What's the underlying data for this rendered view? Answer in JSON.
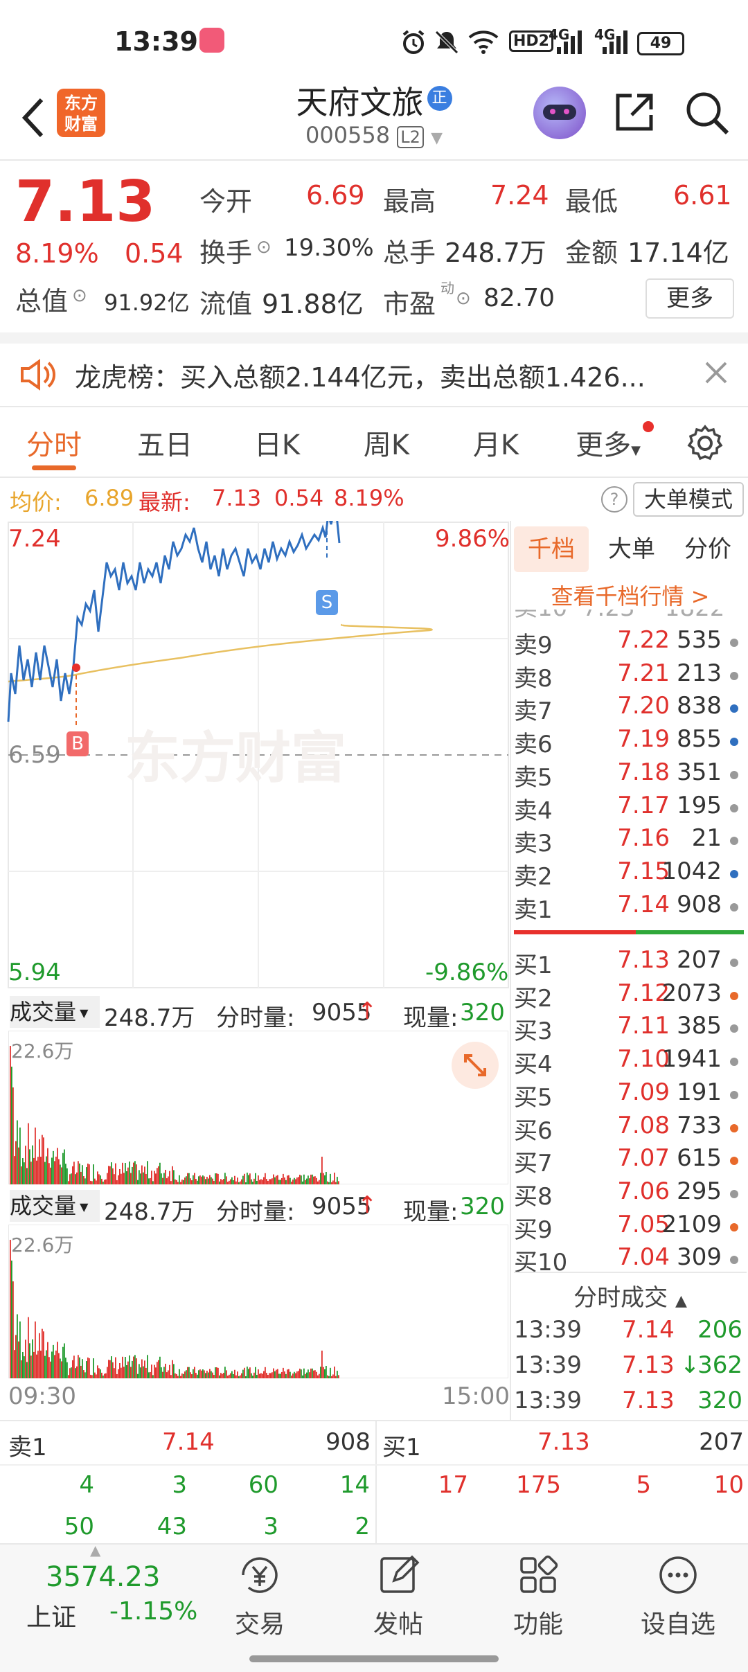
{
  "status_bar": {
    "time": "13:39",
    "battery": "49",
    "network1": "4G",
    "network2": "4G",
    "hd": "HD2"
  },
  "header": {
    "title": "天府文旅",
    "badge": "正",
    "code": "000558",
    "level": "L2",
    "logo_line1": "东方",
    "logo_line2": "财富"
  },
  "quote": {
    "price": "7.13",
    "change_pct": "8.19%",
    "change": "0.54",
    "open_label": "今开",
    "open": "6.69",
    "high_label": "最高",
    "high": "7.24",
    "low_label": "最低",
    "low": "6.61",
    "turnover_label": "换手",
    "turnover": "19.30%",
    "volume_label": "总手",
    "volume": "248.7万",
    "amount_label": "金额",
    "amount": "17.14亿",
    "mktcap_label": "总值",
    "mktcap": "91.92亿",
    "float_label": "流值",
    "float": "91.88亿",
    "pe_label": "市盈",
    "pe_sup": "动",
    "pe": "82.70",
    "more_label": "更多"
  },
  "notice": {
    "text": "龙虎榜：买入总额2.144亿元，卖出总额1.426..."
  },
  "tabs": [
    "分时",
    "五日",
    "日K",
    "周K",
    "月K",
    "更多"
  ],
  "chart_info": {
    "avg_label": "均价:",
    "avg": "6.89",
    "latest_label": "最新:",
    "latest": "7.13",
    "chg": "0.54",
    "pct": "8.19%",
    "big_order_label": "大单模式"
  },
  "chart_data": {
    "type": "line",
    "y_top": "7.24",
    "y_bottom": "5.94",
    "y_ref": "6.59",
    "pct_top": "9.86%",
    "pct_bottom": "-9.86%",
    "x_start": "09:30",
    "x_end": "15:00",
    "buy_marker": "B",
    "sell_marker": "S",
    "watermark": "东方财富"
  },
  "volume_panel": {
    "label": "成交量",
    "total": "248.7万",
    "minute_label": "分时量:",
    "minute": "9055",
    "current_label": "现量:",
    "current": "320",
    "max": "22.6万"
  },
  "orderbook_tabs": [
    "千档",
    "大单",
    "分价"
  ],
  "orderbook_link": "查看千档行情 >",
  "asks": [
    {
      "label": "卖9",
      "price": "7.22",
      "vol": "535",
      "dot": "#999999"
    },
    {
      "label": "卖8",
      "price": "7.21",
      "vol": "213",
      "dot": "#999999"
    },
    {
      "label": "卖7",
      "price": "7.20",
      "vol": "838",
      "dot": "#2f6fbf"
    },
    {
      "label": "卖6",
      "price": "7.19",
      "vol": "855",
      "dot": "#2f6fbf"
    },
    {
      "label": "卖5",
      "price": "7.18",
      "vol": "351",
      "dot": "#999999"
    },
    {
      "label": "卖4",
      "price": "7.17",
      "vol": "195",
      "dot": "#999999"
    },
    {
      "label": "卖3",
      "price": "7.16",
      "vol": "21",
      "dot": "#999999"
    },
    {
      "label": "卖2",
      "price": "7.15",
      "vol": "1042",
      "dot": "#2f6fbf"
    },
    {
      "label": "卖1",
      "price": "7.14",
      "vol": "908",
      "dot": "#999999"
    }
  ],
  "bids": [
    {
      "label": "买1",
      "price": "7.13",
      "vol": "207",
      "dot": "#999999"
    },
    {
      "label": "买2",
      "price": "7.12",
      "vol": "2073",
      "dot": "#e8692a"
    },
    {
      "label": "买3",
      "price": "7.11",
      "vol": "385",
      "dot": "#999999"
    },
    {
      "label": "买4",
      "price": "7.10",
      "vol": "1941",
      "dot": "#999999"
    },
    {
      "label": "买5",
      "price": "7.09",
      "vol": "191",
      "dot": "#999999"
    },
    {
      "label": "买6",
      "price": "7.08",
      "vol": "733",
      "dot": "#e8692a"
    },
    {
      "label": "买7",
      "price": "7.07",
      "vol": "615",
      "dot": "#e8692a"
    },
    {
      "label": "买8",
      "price": "7.06",
      "vol": "295",
      "dot": "#999999"
    },
    {
      "label": "买9",
      "price": "7.05",
      "vol": "2109",
      "dot": "#e8692a"
    },
    {
      "label": "买10",
      "price": "7.04",
      "vol": "309",
      "dot": "#999999"
    }
  ],
  "trades_title": "分时成交",
  "trades": [
    {
      "time": "13:39",
      "price": "7.14",
      "vol": "206",
      "arrow": ""
    },
    {
      "time": "13:39",
      "price": "7.13",
      "vol": "362",
      "arrow": "↓"
    },
    {
      "time": "13:39",
      "price": "7.13",
      "vol": "320",
      "arrow": ""
    }
  ],
  "level_bar": {
    "ask_label": "卖1",
    "ask_price": "7.14",
    "ask_vol": "908",
    "bid_label": "买1",
    "bid_price": "7.13",
    "bid_vol": "207",
    "ask_queue_row1": [
      "4",
      "3",
      "60",
      "14"
    ],
    "ask_queue_row2": [
      "50",
      "43",
      "3",
      "2"
    ],
    "bid_queue_row1": [
      "17",
      "175",
      "5",
      "10"
    ]
  },
  "bottom_nav": {
    "index_value": "3574.23",
    "index_name": "上证",
    "index_change": "-1.15%",
    "items": [
      "交易",
      "发帖",
      "功能",
      "设自选"
    ]
  }
}
